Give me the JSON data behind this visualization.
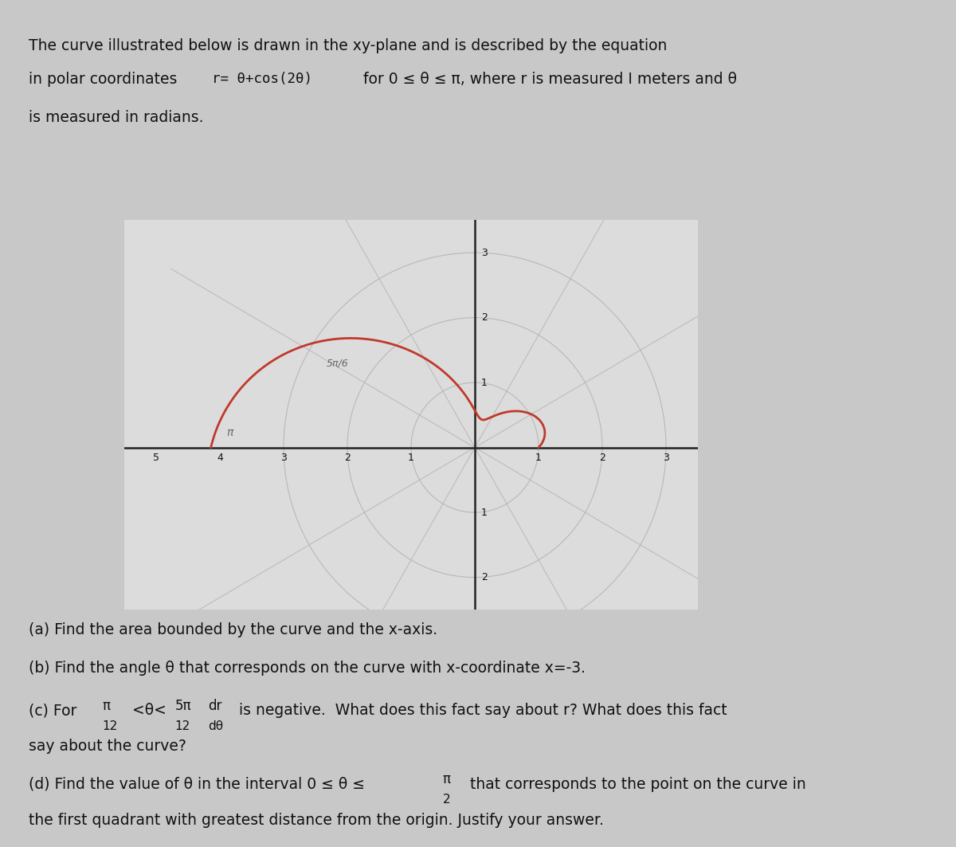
{
  "polar_label_5pi6": "5π/6",
  "polar_label_pi": "π",
  "plot_bg": "#dcdcdc",
  "grid_color": "#b8b8b8",
  "curve_color": "#c0392b",
  "axis_color": "#222222",
  "text_color": "#111111",
  "page_bg": "#c8c8c8",
  "plot_xlim": [
    -5.5,
    3.5
  ],
  "plot_ylim": [
    -2.5,
    3.5
  ],
  "r_ticks": [
    1,
    2,
    3
  ],
  "x_ticks_neg": [
    -5,
    -4,
    -3,
    -2,
    -1
  ],
  "x_ticks_pos": [
    1,
    2,
    3
  ],
  "y_ticks_pos": [
    1,
    2,
    3
  ],
  "y_ticks_neg": [
    -1,
    -2
  ]
}
